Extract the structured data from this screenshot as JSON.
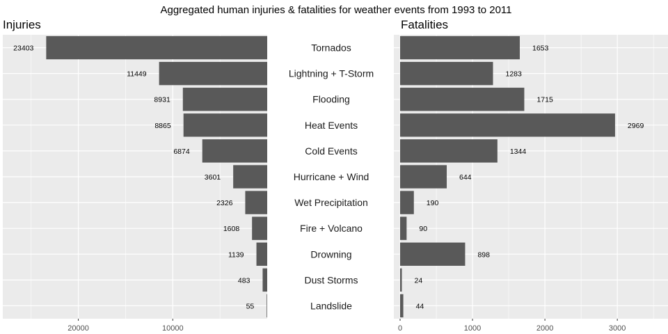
{
  "chart_data": {
    "type": "bar",
    "title": "Aggregated human injuries & fatalities for weather events from 1993 to 2011",
    "categories": [
      "Tornados",
      "Lightning + T-Storm",
      "Flooding",
      "Heat Events",
      "Cold Events",
      "Hurricane + Wind",
      "Wet Precipitation",
      "Fire + Volcano",
      "Drowning",
      "Dust Storms",
      "Landslide"
    ],
    "panels": [
      {
        "title": "Injuries",
        "orientation": "reversed",
        "values": [
          23403,
          11449,
          8931,
          8865,
          6874,
          3601,
          2326,
          1608,
          1139,
          483,
          55
        ],
        "value_labels": [
          "23403",
          "11449",
          "8931",
          "8865",
          "6874",
          "3601",
          "2326",
          "1608",
          "1139",
          "483",
          "55"
        ],
        "xlim": [
          0,
          28000
        ],
        "ticks": [
          20000,
          10000
        ],
        "tick_labels": [
          "20000",
          "10000"
        ],
        "grid": true
      },
      {
        "title": "Fatalities",
        "orientation": "normal",
        "values": [
          1653,
          1283,
          1715,
          2969,
          1344,
          644,
          190,
          90,
          898,
          24,
          44
        ],
        "value_labels": [
          "1653",
          "1283",
          "1715",
          "2969",
          "1344",
          "644",
          "190",
          "90",
          "898",
          "24",
          "44"
        ],
        "xlim": [
          0,
          3700
        ],
        "ticks": [
          0,
          1000,
          2000,
          3000
        ],
        "tick_labels": [
          "0",
          "1000",
          "2000",
          "3000"
        ],
        "grid": true
      }
    ],
    "colors": {
      "bar": "#595959",
      "panel_bg": "#ebebeb",
      "grid": "#ffffff",
      "text": "#000000",
      "tick_text": "#4d4d4d"
    }
  }
}
